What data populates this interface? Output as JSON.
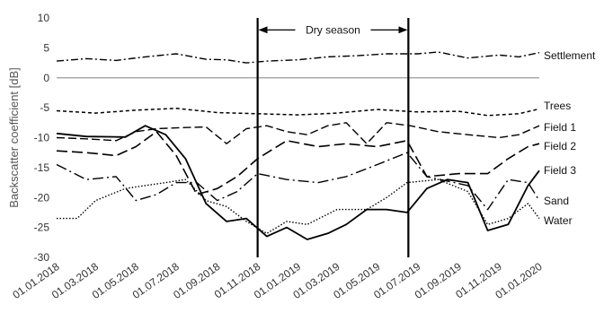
{
  "chart_data": {
    "type": "line",
    "title": "",
    "xlabel": "",
    "ylabel": "Backscatter coefficient [dB]",
    "ylim": [
      -30,
      10
    ],
    "yticks": [
      10,
      5,
      0,
      -5,
      -10,
      -15,
      -20,
      -25,
      -30
    ],
    "x_range": [
      "2018-01-01",
      "2020-01-01"
    ],
    "x_ticks": [
      "01.01.2018",
      "01.03.2018",
      "01.05.2018",
      "01.07.2018",
      "01.09.2018",
      "01.11.2018",
      "01.01.2019",
      "01.03.2019",
      "01.05.2019",
      "01.07.2019",
      "01.09.2019",
      "01.11.2019",
      "01.01.2020"
    ],
    "x_tick_dates": [
      "2018-01-01",
      "2018-03-01",
      "2018-05-01",
      "2018-07-01",
      "2018-09-01",
      "2018-11-01",
      "2019-01-01",
      "2019-03-01",
      "2019-05-01",
      "2019-07-01",
      "2019-09-01",
      "2019-11-01",
      "2020-01-01"
    ],
    "grid": false,
    "zero_line": true,
    "annotations": [
      {
        "text": "Dry season",
        "start": "2018-11-01",
        "end": "2019-06-17",
        "y": 8
      }
    ],
    "series": [
      {
        "name": "Settlement",
        "style": "dash-dot",
        "values": [
          [
            "2018-01-01",
            2.8
          ],
          [
            "2018-02-15",
            3.2
          ],
          [
            "2018-04-01",
            2.9
          ],
          [
            "2018-05-15",
            3.5
          ],
          [
            "2018-07-01",
            4.0
          ],
          [
            "2018-08-15",
            3.1
          ],
          [
            "2018-09-15",
            3.0
          ],
          [
            "2018-10-15",
            2.5
          ],
          [
            "2018-11-15",
            2.8
          ],
          [
            "2019-01-01",
            3.0
          ],
          [
            "2019-02-15",
            3.5
          ],
          [
            "2019-04-01",
            3.7
          ],
          [
            "2019-05-15",
            4.0
          ],
          [
            "2019-07-01",
            4.0
          ],
          [
            "2019-08-01",
            4.3
          ],
          [
            "2019-09-15",
            3.3
          ],
          [
            "2019-11-01",
            3.8
          ],
          [
            "2019-12-01",
            3.5
          ],
          [
            "2020-01-01",
            4.2
          ]
        ]
      },
      {
        "name": "Trees",
        "style": "short-dash",
        "values": [
          [
            "2018-01-01",
            -5.5
          ],
          [
            "2018-03-01",
            -5.9
          ],
          [
            "2018-05-01",
            -5.4
          ],
          [
            "2018-07-01",
            -5.1
          ],
          [
            "2018-09-01",
            -5.8
          ],
          [
            "2018-11-01",
            -6.0
          ],
          [
            "2019-01-01",
            -6.2
          ],
          [
            "2019-03-01",
            -5.9
          ],
          [
            "2019-05-01",
            -5.3
          ],
          [
            "2019-07-01",
            -5.7
          ],
          [
            "2019-09-01",
            -5.6
          ],
          [
            "2019-10-15",
            -6.3
          ],
          [
            "2019-12-01",
            -6.0
          ],
          [
            "2020-01-01",
            -5.2
          ]
        ]
      },
      {
        "name": "Field 1",
        "style": "long-dash",
        "values": [
          [
            "2018-01-01",
            -10.0
          ],
          [
            "2018-02-15",
            -10.2
          ],
          [
            "2018-04-01",
            -10.5
          ],
          [
            "2018-05-01",
            -9.0
          ],
          [
            "2018-06-01",
            -8.5
          ],
          [
            "2018-07-15",
            -8.3
          ],
          [
            "2018-08-15",
            -8.2
          ],
          [
            "2018-09-15",
            -11.0
          ],
          [
            "2018-10-15",
            -8.5
          ],
          [
            "2018-11-15",
            -8.0
          ],
          [
            "2018-12-15",
            -9.0
          ],
          [
            "2019-01-15",
            -9.5
          ],
          [
            "2019-02-15",
            -8.0
          ],
          [
            "2019-03-15",
            -7.5
          ],
          [
            "2019-04-15",
            -11.0
          ],
          [
            "2019-05-15",
            -7.5
          ],
          [
            "2019-06-20",
            -8.0
          ],
          [
            "2019-08-01",
            -9.0
          ],
          [
            "2019-09-15",
            -9.5
          ],
          [
            "2019-11-01",
            -10.0
          ],
          [
            "2019-12-01",
            -9.5
          ],
          [
            "2020-01-01",
            -8.0
          ]
        ]
      },
      {
        "name": "Field 2",
        "style": "long-dash-heavy",
        "values": [
          [
            "2018-01-01",
            -12.2
          ],
          [
            "2018-02-15",
            -12.5
          ],
          [
            "2018-04-01",
            -13.0
          ],
          [
            "2018-05-01",
            -11.5
          ],
          [
            "2018-06-01",
            -9.0
          ],
          [
            "2018-07-01",
            -13.0
          ],
          [
            "2018-08-01",
            -19.5
          ],
          [
            "2018-09-01",
            -18.5
          ],
          [
            "2018-10-01",
            -16.5
          ],
          [
            "2018-11-01",
            -13.5
          ],
          [
            "2018-12-15",
            -10.5
          ],
          [
            "2019-02-01",
            -11.5
          ],
          [
            "2019-03-15",
            -11.0
          ],
          [
            "2019-05-01",
            -11.5
          ],
          [
            "2019-06-15",
            -10.5
          ],
          [
            "2019-07-15",
            -16.5
          ],
          [
            "2019-09-01",
            -16.0
          ],
          [
            "2019-10-15",
            -16.0
          ],
          [
            "2019-11-15",
            -13.5
          ],
          [
            "2019-12-15",
            -11.5
          ],
          [
            "2020-01-01",
            -11.0
          ]
        ]
      },
      {
        "name": "Field 3",
        "style": "solid",
        "values": [
          [
            "2018-01-01",
            -9.3
          ],
          [
            "2018-02-15",
            -9.8
          ],
          [
            "2018-04-15",
            -9.9
          ],
          [
            "2018-05-15",
            -8.0
          ],
          [
            "2018-06-15",
            -9.5
          ],
          [
            "2018-07-15",
            -13.5
          ],
          [
            "2018-08-15",
            -21.0
          ],
          [
            "2018-09-15",
            -24.0
          ],
          [
            "2018-10-15",
            -23.5
          ],
          [
            "2018-11-15",
            -26.5
          ],
          [
            "2018-12-15",
            -25.0
          ],
          [
            "2019-01-15",
            -27.0
          ],
          [
            "2019-02-15",
            -26.0
          ],
          [
            "2019-03-15",
            -24.5
          ],
          [
            "2019-04-15",
            -22.0
          ],
          [
            "2019-05-15",
            -22.0
          ],
          [
            "2019-06-15",
            -22.5
          ],
          [
            "2019-07-15",
            -18.5
          ],
          [
            "2019-08-15",
            -17.0
          ],
          [
            "2019-09-15",
            -17.5
          ],
          [
            "2019-10-15",
            -25.5
          ],
          [
            "2019-11-15",
            -24.5
          ],
          [
            "2019-12-15",
            -18.0
          ],
          [
            "2020-01-01",
            -15.5
          ]
        ]
      },
      {
        "name": "Sand",
        "style": "dash-dot-long",
        "values": [
          [
            "2018-01-01",
            -14.5
          ],
          [
            "2018-02-15",
            -17.0
          ],
          [
            "2018-04-01",
            -16.5
          ],
          [
            "2018-05-01",
            -20.5
          ],
          [
            "2018-06-01",
            -19.5
          ],
          [
            "2018-07-01",
            -17.5
          ],
          [
            "2018-08-01",
            -17.5
          ],
          [
            "2018-09-01",
            -20.5
          ],
          [
            "2018-10-01",
            -19.0
          ],
          [
            "2018-11-01",
            -16.0
          ],
          [
            "2018-12-15",
            -17.0
          ],
          [
            "2019-02-01",
            -17.5
          ],
          [
            "2019-03-15",
            -16.5
          ],
          [
            "2019-05-01",
            -14.5
          ],
          [
            "2019-06-15",
            -12.5
          ],
          [
            "2019-07-15",
            -16.5
          ],
          [
            "2019-09-15",
            -18.0
          ],
          [
            "2019-10-15",
            -22.0
          ],
          [
            "2019-11-15",
            -17.0
          ],
          [
            "2019-12-15",
            -17.5
          ],
          [
            "2020-01-01",
            -20.5
          ]
        ]
      },
      {
        "name": "Water",
        "style": "dotted",
        "values": [
          [
            "2018-01-01",
            -23.5
          ],
          [
            "2018-02-01",
            -23.5
          ],
          [
            "2018-03-01",
            -20.5
          ],
          [
            "2018-04-15",
            -18.5
          ],
          [
            "2018-05-15",
            -18.0
          ],
          [
            "2018-06-15",
            -17.5
          ],
          [
            "2018-07-15",
            -17.0
          ],
          [
            "2018-08-15",
            -20.5
          ],
          [
            "2018-09-15",
            -21.5
          ],
          [
            "2018-10-15",
            -24.0
          ],
          [
            "2018-11-15",
            -26.0
          ],
          [
            "2018-12-15",
            -24.0
          ],
          [
            "2019-01-15",
            -24.5
          ],
          [
            "2019-03-01",
            -22.0
          ],
          [
            "2019-04-15",
            -22.0
          ],
          [
            "2019-05-15",
            -20.0
          ],
          [
            "2019-06-15",
            -17.5
          ],
          [
            "2019-08-01",
            -17.0
          ],
          [
            "2019-09-15",
            -19.0
          ],
          [
            "2019-10-15",
            -24.5
          ],
          [
            "2019-11-15",
            -23.5
          ],
          [
            "2019-12-15",
            -21.0
          ],
          [
            "2020-01-01",
            -23.5
          ]
        ]
      }
    ]
  }
}
